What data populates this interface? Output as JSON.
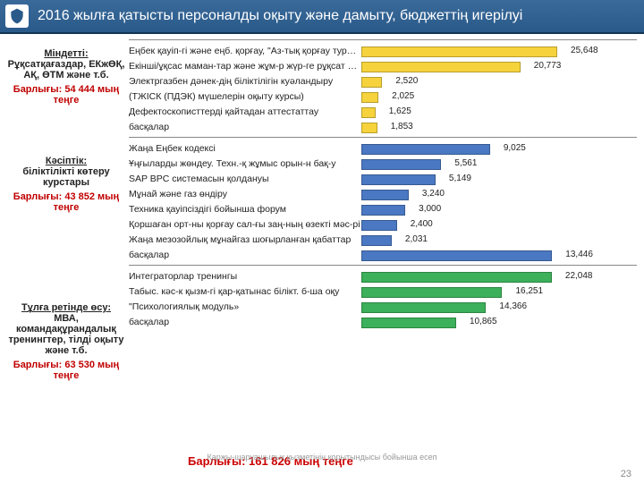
{
  "page": {
    "title": "2016 жылға қатысты персоналды оқыту және дамыту, бюджеттің игерілуі",
    "grand_total": "Барлығы: 161 826 мың теңге",
    "footnote": "Қаржы-шаруашылық қызметінің қорытындысы бойынша есеп",
    "page_number": "23"
  },
  "colors": {
    "header_bg": "#2a5a8a",
    "yellow": "#f6d33c",
    "blue": "#4a78c2",
    "green": "#3cb05a",
    "red": "#c00000"
  },
  "sections": [
    {
      "id": "s1",
      "heading": "Міндетті:",
      "sub": "Рұқсатқағаздар, ЕКжӨҚ, АҚ, ӨТМ және т.б.",
      "total": "Барлығы: 54 444 мың теңге",
      "color": "#f6d33c",
      "max": 26000,
      "rows": [
        {
          "label": "Еңбек қауіп-гі және еңб. қорғау, \"Аз-тық қорғау туралы\"",
          "value": 25648
        },
        {
          "label": "Екінші/ұқсас маман-тар және жұм-р жүр-ге рұқсат оқу",
          "value": 20773
        },
        {
          "label": "Электргазбен дәнек-дің біліктілігін куәландыру",
          "value": 2520
        },
        {
          "label": "(ТЖІСК (ПДЭК) мүшелерін оқыту курсы)",
          "value": 2025
        },
        {
          "label": "Дефектоскописттерді қайтадан аттестаттау",
          "value": 1625
        },
        {
          "label": "басқалар",
          "value": 1853
        }
      ]
    },
    {
      "id": "s2",
      "heading": "Кәсіптік:",
      "sub": "біліктілікті көтеру курстары",
      "total": "Барлығы: 43 852 мың теңге",
      "color": "#4a78c2",
      "max": 14000,
      "rows": [
        {
          "label": "Жаңа Еңбек кодексі",
          "value": 9025
        },
        {
          "label": "Ұңғыларды жөндеу. Техн.-қ жұмыс орын-н бақ-у",
          "value": 5561
        },
        {
          "label": "SAP BPC системасын қолдануы",
          "value": 5149
        },
        {
          "label": "Мұнай және газ өндіру",
          "value": 3240
        },
        {
          "label": "Техника қауіпсіздігі бойынша форум",
          "value": 3000
        },
        {
          "label": "Қоршаған орт-ны қорғау сал-ғы заң-ның өзекті мәс-рі",
          "value": 2400
        },
        {
          "label": "Жаңа мезозойлық мұнайгаз шоғырланған қабаттар",
          "value": 2031
        },
        {
          "label": "басқалар",
          "value": 13446
        }
      ]
    },
    {
      "id": "s3",
      "heading": "Тұлға ретінде өсу:",
      "sub": "МВА, командақұрандалық тренингтер, тілді оқыту және т.б.",
      "total": "Барлығы: 63 530 мың теңге",
      "color": "#3cb05a",
      "max": 23000,
      "rows": [
        {
          "label": "Интеграторлар тренингы",
          "value": 22048
        },
        {
          "label": "Табыс. кәс-к қызм-гі қар-қатынас білікт. б-ша оқу",
          "value": 16251
        },
        {
          "label": "\"Психологиялық модуль»",
          "value": 14366
        },
        {
          "label": "басқалар",
          "value": 10865
        }
      ]
    }
  ]
}
